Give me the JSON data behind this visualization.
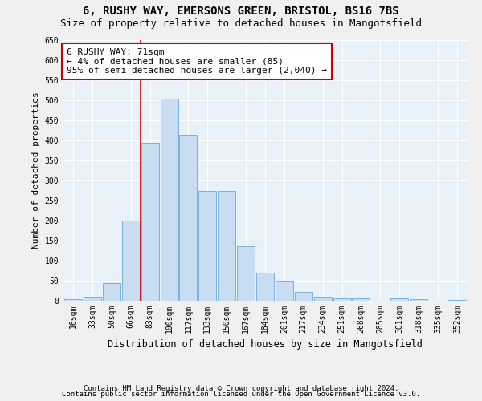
{
  "title1": "6, RUSHY WAY, EMERSONS GREEN, BRISTOL, BS16 7BS",
  "title2": "Size of property relative to detached houses in Mangotsfield",
  "xlabel": "Distribution of detached houses by size in Mangotsfield",
  "ylabel": "Number of detached properties",
  "categories": [
    "16sqm",
    "33sqm",
    "50sqm",
    "66sqm",
    "83sqm",
    "100sqm",
    "117sqm",
    "133sqm",
    "150sqm",
    "167sqm",
    "184sqm",
    "201sqm",
    "217sqm",
    "234sqm",
    "251sqm",
    "268sqm",
    "285sqm",
    "301sqm",
    "318sqm",
    "335sqm",
    "352sqm"
  ],
  "values": [
    5,
    10,
    45,
    200,
    395,
    505,
    415,
    275,
    275,
    137,
    70,
    50,
    22,
    10,
    7,
    7,
    0,
    7,
    5,
    0,
    3
  ],
  "bar_color": "#c9ddf2",
  "bar_edge_color": "#6aaad4",
  "vline_x": 3.5,
  "vline_color": "#cc0000",
  "annotation_text": "6 RUSHY WAY: 71sqm\n← 4% of detached houses are smaller (85)\n95% of semi-detached houses are larger (2,040) →",
  "annotation_box_color": "#ffffff",
  "annotation_box_edge": "#cc0000",
  "ylim": [
    0,
    650
  ],
  "yticks": [
    0,
    50,
    100,
    150,
    200,
    250,
    300,
    350,
    400,
    450,
    500,
    550,
    600,
    650
  ],
  "footnote1": "Contains HM Land Registry data © Crown copyright and database right 2024.",
  "footnote2": "Contains public sector information licensed under the Open Government Licence v3.0.",
  "bg_color": "#e8f0f8",
  "fig_color": "#f0f0f0",
  "grid_color": "#ffffff",
  "title1_fontsize": 10,
  "title2_fontsize": 9,
  "xlabel_fontsize": 8.5,
  "ylabel_fontsize": 8,
  "tick_fontsize": 7,
  "annot_fontsize": 8,
  "footnote_fontsize": 6.5
}
